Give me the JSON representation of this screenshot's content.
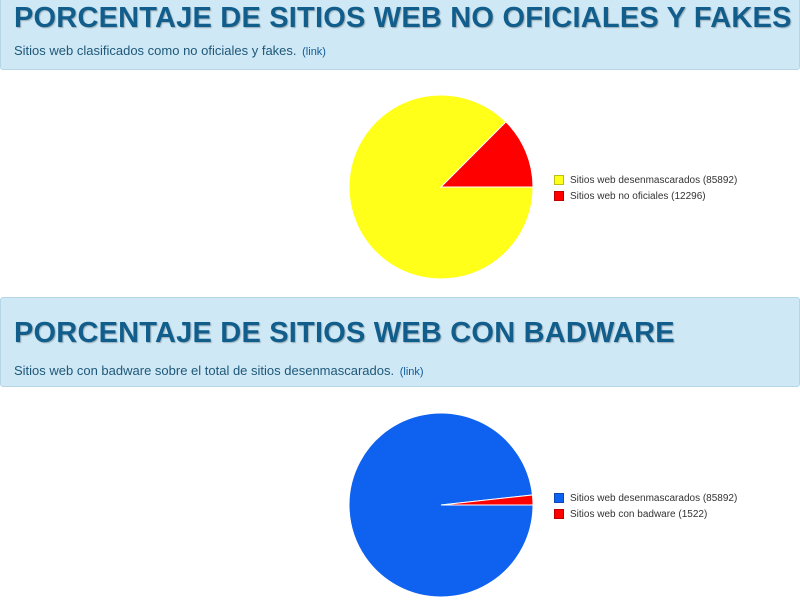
{
  "sections": [
    {
      "title": "PORCENTAJE DE SITIOS WEB NO OFICIALES Y FAKES",
      "subtitle": "Sitios web clasificados como no oficiales y fakes.",
      "link_label": "(link)"
    },
    {
      "title": "PORCENTAJE DE SITIOS WEB CON BADWARE",
      "subtitle": "Sitios web con badware sobre el total de sitios desenmascarados.",
      "link_label": "(link)"
    }
  ],
  "chart_data": [
    {
      "type": "pie",
      "title": "",
      "legend_position": "right",
      "labels": [
        "Sitios web desenmascarados (85892)",
        "Sitios web no oficiales (12296)"
      ],
      "values": [
        85892,
        12296
      ],
      "colors": [
        "#ffff1a",
        "#ff0000"
      ]
    },
    {
      "type": "pie",
      "title": "",
      "legend_position": "right",
      "labels": [
        "Sitios web desenmascarados (85892)",
        "Sitios web con badware (1522)"
      ],
      "values": [
        85892,
        1522
      ],
      "colors": [
        "#0f61f0",
        "#ff0000"
      ]
    }
  ]
}
